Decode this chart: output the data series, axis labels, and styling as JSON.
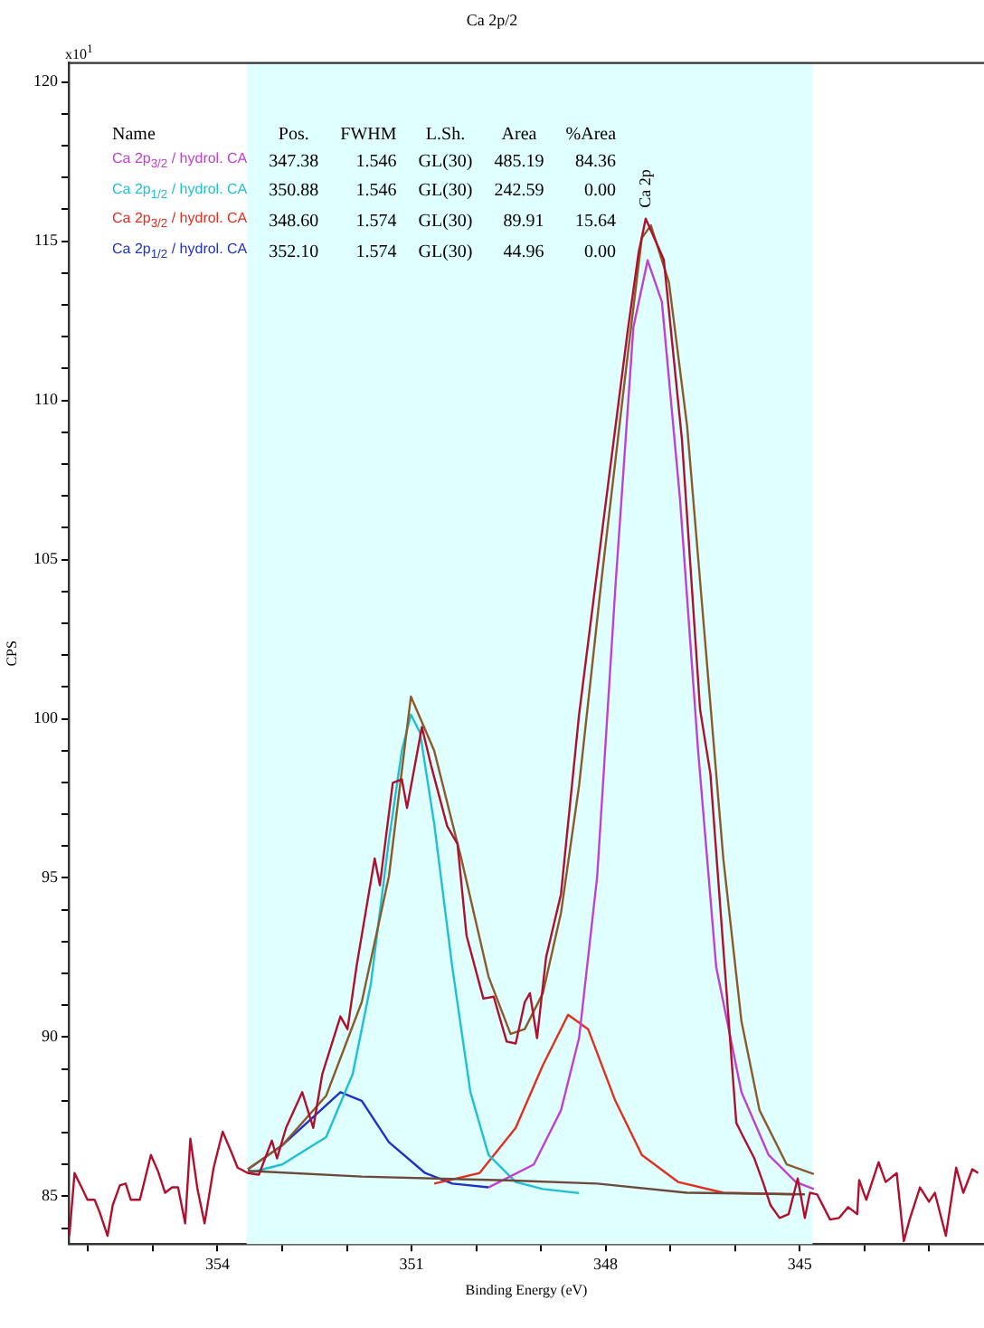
{
  "chart_data": {
    "type": "line",
    "title": "Ca 2p/2",
    "xlabel": "Binding Energy (eV)",
    "ylabel": "CPS",
    "xlim": [
      356.3,
      342.15
    ],
    "ylim": [
      83.5,
      120.6
    ],
    "xticks": [
      {
        "value": 356,
        "label": null
      },
      {
        "value": 355,
        "label": null
      },
      354,
      {
        "value": 353,
        "label": null
      },
      {
        "value": 352,
        "label": null
      },
      351,
      {
        "value": 350,
        "label": null
      },
      {
        "value": 349,
        "label": null
      },
      348,
      {
        "value": 347,
        "label": null
      },
      {
        "value": 346,
        "label": null
      },
      345,
      {
        "value": 344,
        "label": null
      },
      {
        "value": 343,
        "label": null
      }
    ],
    "yticks": [
      {
        "value": 84,
        "label": null
      },
      85,
      {
        "value": 86,
        "label": null
      },
      {
        "value": 87,
        "label": null
      },
      {
        "value": 88,
        "label": null
      },
      {
        "value": 89,
        "label": null
      },
      90,
      {
        "value": 91,
        "label": null
      },
      {
        "value": 92,
        "label": null
      },
      {
        "value": 93,
        "label": null
      },
      {
        "value": 94,
        "label": null
      },
      95,
      {
        "value": 96,
        "label": null
      },
      {
        "value": 97,
        "label": null
      },
      {
        "value": 98,
        "label": null
      },
      {
        "value": 99,
        "label": null
      },
      100,
      {
        "value": 101,
        "label": null
      },
      {
        "value": 102,
        "label": null
      },
      {
        "value": 103,
        "label": null
      },
      {
        "value": 104,
        "label": null
      },
      105,
      {
        "value": 106,
        "label": null
      },
      {
        "value": 107,
        "label": null
      },
      {
        "value": 108,
        "label": null
      },
      {
        "value": 109,
        "label": null
      },
      110,
      {
        "value": 111,
        "label": null
      },
      {
        "value": 112,
        "label": null
      },
      {
        "value": 113,
        "label": null
      },
      {
        "value": 114,
        "label": null
      },
      115,
      {
        "value": 116,
        "label": null
      },
      {
        "value": 117,
        "label": null
      },
      {
        "value": 118,
        "label": null
      },
      {
        "value": 119,
        "label": null
      },
      120
    ],
    "grid": false,
    "legend": false,
    "marker": "none",
    "line_style": "solid",
    "bands": [
      {
        "axis": "x",
        "from": 353.55,
        "to": 344.8,
        "color": "#e0ffff"
      }
    ],
    "annotations": [
      "Name",
      "Pos.",
      "FWHM",
      "L.Sh.",
      "Area",
      "%Area",
      "347.38",
      "1.546",
      "GL(30)",
      "485.19",
      "84.36",
      "350.88",
      "1.546",
      "GL(30)",
      "242.59",
      "0.00",
      "348.60",
      "1.574",
      "GL(30)",
      "89.91",
      "15.64",
      "352.10",
      "1.574",
      "GL(30)",
      "44.96",
      "0.00",
      "x10$^{1}$",
      "Ca 2p"
    ],
    "series": [
      {
        "color": "#b0102e",
        "x": [
          356.29,
          356.21,
          356.09,
          356.01,
          355.9,
          355.82,
          355.7,
          355.62,
          355.51,
          355.42,
          355.34,
          355.2,
          355.03,
          354.92,
          354.81,
          354.7,
          354.61,
          354.5,
          354.42,
          354.31,
          354.2,
          354.06,
          353.92,
          353.78,
          353.69,
          353.53,
          353.36,
          353.16,
          353.08,
          352.94,
          352.69,
          352.52,
          352.38,
          352.1,
          351.99,
          351.85,
          351.57,
          351.49,
          351.29,
          351.15,
          351.07,
          350.84,
          350.7,
          350.45,
          350.29,
          350.15,
          349.89,
          349.73,
          349.53,
          349.39,
          349.25,
          349.17,
          349.06,
          348.92,
          348.69,
          348.41,
          348.05,
          347.66,
          347.49,
          347.38,
          347.1,
          346.82,
          346.54,
          346.38,
          345.98,
          345.9,
          345.7,
          345.56,
          345.45,
          345.31,
          345.17,
          345.03,
          344.92,
          344.84,
          344.73,
          344.53,
          344.39,
          344.25,
          344.11,
          344.08,
          343.97,
          343.78,
          343.67,
          343.5,
          343.39,
          343.3,
          343.14,
          343,
          342.91,
          342.74,
          342.58,
          342.47,
          342.33,
          342.24
        ],
        "values": [
          83.76,
          85.73,
          85.23,
          84.89,
          84.89,
          84.49,
          83.76,
          84.72,
          85.34,
          85.4,
          84.89,
          84.89,
          86.3,
          85.79,
          85.11,
          85.28,
          85.28,
          84.15,
          86.81,
          85.23,
          84.15,
          85.9,
          87.03,
          86.36,
          85.9,
          85.73,
          85.68,
          86.75,
          86.19,
          87.15,
          88.27,
          87.15,
          88.84,
          90.65,
          90.25,
          92.23,
          95.61,
          94.77,
          97.99,
          98.1,
          97.2,
          99.74,
          98.55,
          96.63,
          96.07,
          93.19,
          91.21,
          91.27,
          89.86,
          89.8,
          91.1,
          91.38,
          89.97,
          92.51,
          94.49,
          100.13,
          105.95,
          112.16,
          114.64,
          115.71,
          114.42,
          108.77,
          100.3,
          98.27,
          87.31,
          86.98,
          86.19,
          85.4,
          84.72,
          84.32,
          84.44,
          85.56,
          84.32,
          85.11,
          85.06,
          84.27,
          84.32,
          84.66,
          84.44,
          85.51,
          84.89,
          86.07,
          85.45,
          85.73,
          83.59,
          84.27,
          85.28,
          84.83,
          85.11,
          83.76,
          85.9,
          85.11,
          85.85,
          85.73
        ]
      },
      {
        "color": "#8b5a2b",
        "x": [
          353.53,
          353.0,
          352.32,
          351.77,
          351.35,
          351.01,
          350.65,
          350.23,
          349.81,
          349.47,
          349.25,
          348.97,
          348.69,
          348.41,
          348.05,
          347.66,
          347.44,
          347.3,
          347.02,
          346.74,
          346.46,
          346.18,
          345.9,
          345.62,
          345.2,
          344.78
        ],
        "values": [
          85.85,
          86.6,
          88.16,
          91.1,
          95.05,
          100.7,
          99.0,
          95.6,
          91.9,
          90.1,
          90.25,
          91.38,
          93.9,
          97.9,
          104.6,
          111.4,
          115.1,
          115.5,
          113.7,
          109.2,
          102.4,
          95.6,
          90.5,
          87.7,
          86.0,
          85.7
        ]
      },
      {
        "color": "#6b4a3a",
        "x": [
          353.53,
          351.77,
          349.53,
          348.13,
          346.74,
          344.92
        ],
        "values": [
          85.8,
          85.62,
          85.5,
          85.4,
          85.11,
          85.06
        ]
      },
      {
        "name": "Ca 2p$_{3/2}$ / hydrol. CA",
        "color": "#c040d0",
        "x": [
          349.81,
          349.11,
          348.69,
          348.41,
          348.13,
          347.85,
          347.57,
          347.35,
          347.13,
          346.85,
          346.57,
          346.29,
          345.9,
          345.48,
          345.06,
          344.78
        ],
        "values": [
          85.28,
          86.0,
          87.7,
          89.97,
          95.05,
          104.1,
          112.3,
          114.4,
          113.1,
          106.9,
          99.0,
          92.2,
          88.27,
          86.3,
          85.45,
          85.23
        ]
      },
      {
        "name": "Ca 2p$_{1/2}$ / hydrol. CA",
        "color": "#20c0d0",
        "x": [
          353.53,
          353.0,
          352.32,
          351.91,
          351.63,
          351.35,
          351.15,
          351.01,
          350.87,
          350.65,
          350.37,
          350.09,
          349.81,
          349.39,
          348.97,
          348.41
        ],
        "values": [
          85.73,
          86.0,
          86.86,
          88.84,
          91.66,
          96.18,
          99.0,
          100.13,
          99.57,
          96.7,
          92.2,
          88.27,
          86.3,
          85.45,
          85.23,
          85.1
        ]
      },
      {
        "name": "Ca 2p$_{3/2}$ / hydrol. CA",
        "color": "#e03020",
        "x": [
          350.65,
          349.95,
          349.39,
          348.97,
          348.58,
          348.27,
          347.85,
          347.44,
          346.88,
          346.18,
          345.06
        ],
        "values": [
          85.4,
          85.73,
          87.15,
          89.12,
          90.7,
          90.25,
          88.0,
          86.3,
          85.45,
          85.11,
          85.06
        ]
      },
      {
        "name": "Ca 2p$_{1/2}$ / hydrol. CA",
        "color": "#2030c8",
        "x": [
          353.53,
          353.0,
          352.46,
          352.1,
          351.77,
          351.35,
          350.79,
          350.37,
          349.81
        ],
        "values": [
          85.85,
          86.6,
          87.6,
          88.27,
          88.0,
          86.7,
          85.73,
          85.4,
          85.28
        ]
      }
    ]
  }
}
